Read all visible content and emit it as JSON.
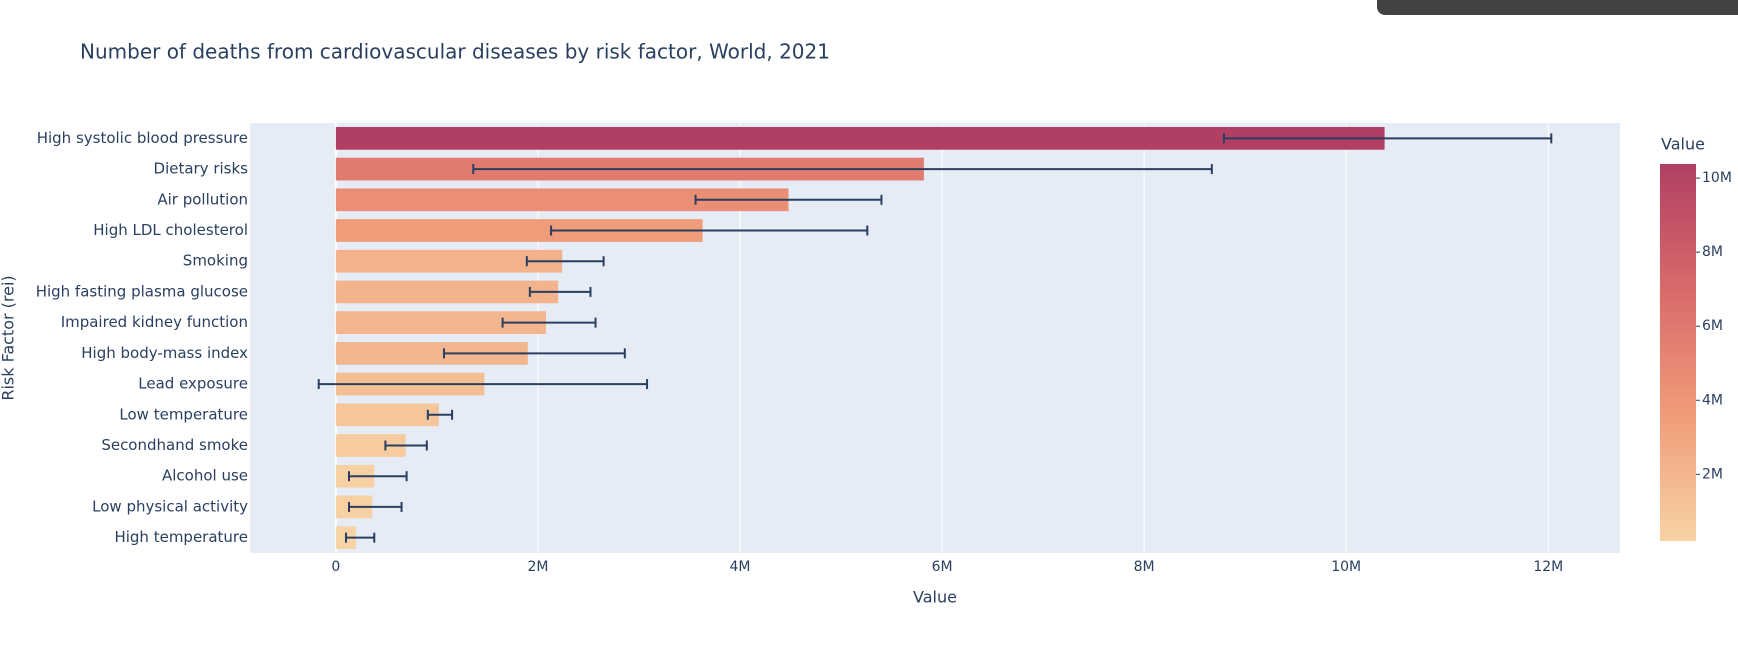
{
  "chart_data": {
    "type": "hbar",
    "title": "Number of deaths from cardiovascular diseases by risk factor, World, 2021",
    "x_label": "Value",
    "y_label": "Risk Factor (rei)",
    "categories": [
      "High systolic blood pressure",
      "Dietary risks",
      "Air pollution",
      "High LDL cholesterol",
      "Smoking",
      "High fasting plasma glucose",
      "Impaired kidney function",
      "High body-mass index",
      "Lead exposure",
      "Low temperature",
      "Secondhand smoke",
      "Alcohol use",
      "Low physical activity",
      "High temperature"
    ],
    "values": [
      10380000,
      5820000,
      4480000,
      3630000,
      2240000,
      2200000,
      2080000,
      1900000,
      1470000,
      1020000,
      690000,
      380000,
      360000,
      200000
    ],
    "error_minus": [
      1590000,
      4460000,
      920000,
      1500000,
      350000,
      280000,
      430000,
      830000,
      1640000,
      110000,
      200000,
      250000,
      230000,
      100000
    ],
    "error_plus": [
      1650000,
      2850000,
      920000,
      1630000,
      410000,
      320000,
      490000,
      960000,
      1610000,
      130000,
      210000,
      320000,
      290000,
      180000
    ],
    "error_color": "#2a3f5f",
    "colorscale": [
      "#f7d3a5",
      "#f09c7a",
      "#d96a6a",
      "#b13f64"
    ],
    "colorbar_title": "Value",
    "colorbar_ticks": [
      {
        "value": 2000000,
        "label": "2M"
      },
      {
        "value": 4000000,
        "label": "4M"
      },
      {
        "value": 6000000,
        "label": "6M"
      },
      {
        "value": 8000000,
        "label": "8M"
      },
      {
        "value": 10000000,
        "label": "10M"
      }
    ],
    "xlim": [
      -850000,
      12710000
    ],
    "xticks": [
      0,
      {
        "value": 2000000,
        "label": "2M"
      },
      {
        "value": 4000000,
        "label": "4M"
      },
      {
        "value": 6000000,
        "label": "6M"
      },
      {
        "value": 8000000,
        "label": "8M"
      },
      {
        "value": 10000000,
        "label": "10M"
      },
      {
        "value": 12000000,
        "label": "12M"
      }
    ],
    "grid": true
  }
}
